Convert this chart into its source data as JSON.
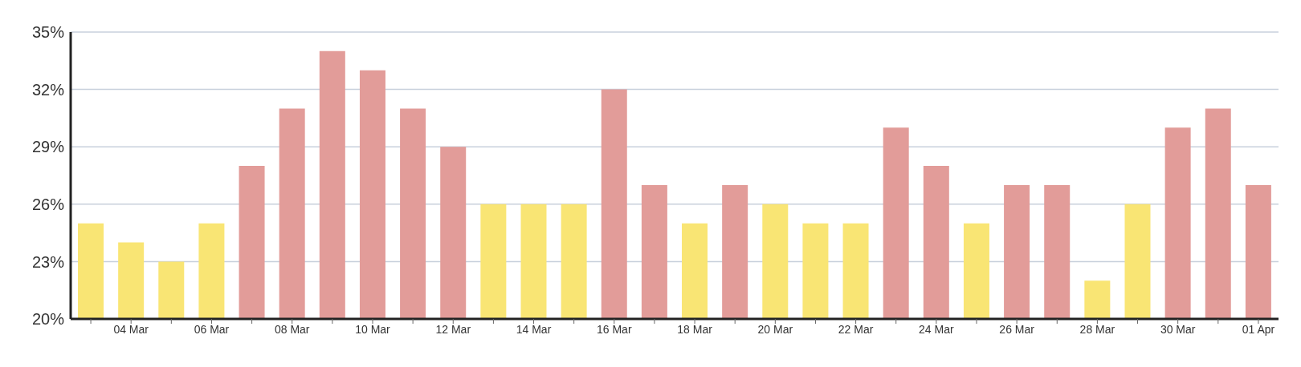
{
  "chart_data": {
    "type": "bar",
    "categories": [
      null,
      "04 Mar",
      null,
      "06 Mar",
      null,
      "08 Mar",
      null,
      "10 Mar",
      null,
      "12 Mar",
      null,
      "14 Mar",
      null,
      "16 Mar",
      null,
      "18 Mar",
      null,
      "20 Mar",
      null,
      "22 Mar",
      null,
      "24 Mar",
      null,
      "26 Mar",
      null,
      "28 Mar",
      null,
      "30 Mar",
      null,
      "01 Apr"
    ],
    "values": [
      25,
      24,
      23,
      25,
      28,
      31,
      34,
      33,
      31,
      29,
      26,
      26,
      26,
      32,
      27,
      25,
      27,
      26,
      25,
      25,
      30,
      28,
      25,
      27,
      27,
      22,
      26,
      30,
      31,
      27
    ],
    "colors": [
      "#f9e574",
      "#f9e574",
      "#f9e574",
      "#f9e574",
      "#e29c99",
      "#e29c99",
      "#e29c99",
      "#e29c99",
      "#e29c99",
      "#e29c99",
      "#f9e574",
      "#f9e574",
      "#f9e574",
      "#e29c99",
      "#e29c99",
      "#f9e574",
      "#e29c99",
      "#f9e574",
      "#f9e574",
      "#f9e574",
      "#e29c99",
      "#e29c99",
      "#f9e574",
      "#e29c99",
      "#e29c99",
      "#f9e574",
      "#f9e574",
      "#e29c99",
      "#e29c99",
      "#e29c99"
    ],
    "ylim": [
      20,
      35
    ],
    "yticks": [
      {
        "value": 20,
        "label": "20%"
      },
      {
        "value": 23,
        "label": "23%"
      },
      {
        "value": 26,
        "label": "26%"
      },
      {
        "value": 29,
        "label": "29%"
      },
      {
        "value": 32,
        "label": "32%"
      },
      {
        "value": 35,
        "label": "35%"
      }
    ],
    "grid": "y"
  }
}
